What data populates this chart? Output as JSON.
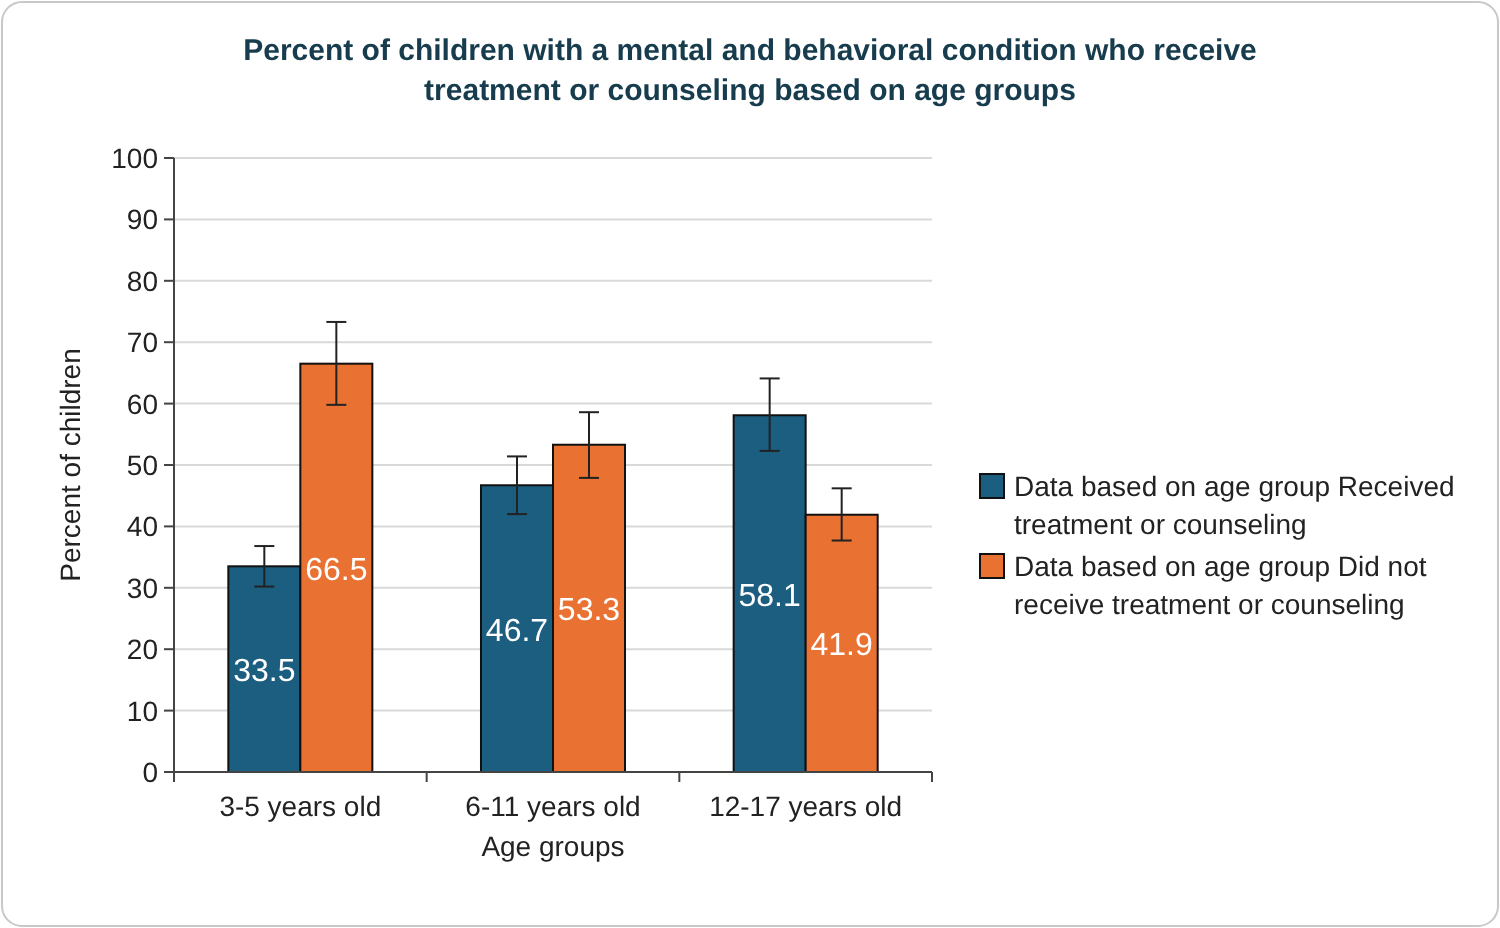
{
  "chart_data": {
    "type": "bar",
    "title": "Percent of children with a mental and behavioral condition who receive treatment or counseling based on age groups",
    "xlabel": "Age groups",
    "ylabel": "Percent of children",
    "categories": [
      "3-5 years old",
      "6-11 years old",
      "12-17 years old"
    ],
    "series": [
      {
        "name": "Data based on age group Received treatment or counseling",
        "color": "#1b5e80",
        "values": [
          33.5,
          46.7,
          58.1
        ],
        "errors": [
          [
            30.2,
            36.8
          ],
          [
            42,
            51.4
          ],
          [
            52.3,
            64.1
          ]
        ]
      },
      {
        "name": "Data based on age group Did not receive treatment or counseling",
        "color": "#e97132",
        "values": [
          66.5,
          53.3,
          41.9
        ],
        "errors": [
          [
            59.8,
            73.3
          ],
          [
            47.9,
            58.6
          ],
          [
            37.7,
            46.2
          ]
        ]
      }
    ],
    "ylim": [
      0,
      100
    ],
    "yticks": [
      0,
      10,
      20,
      30,
      40,
      50,
      60,
      70,
      80,
      90,
      100
    ],
    "grid": "y",
    "legend": "right",
    "data_labels": true
  }
}
